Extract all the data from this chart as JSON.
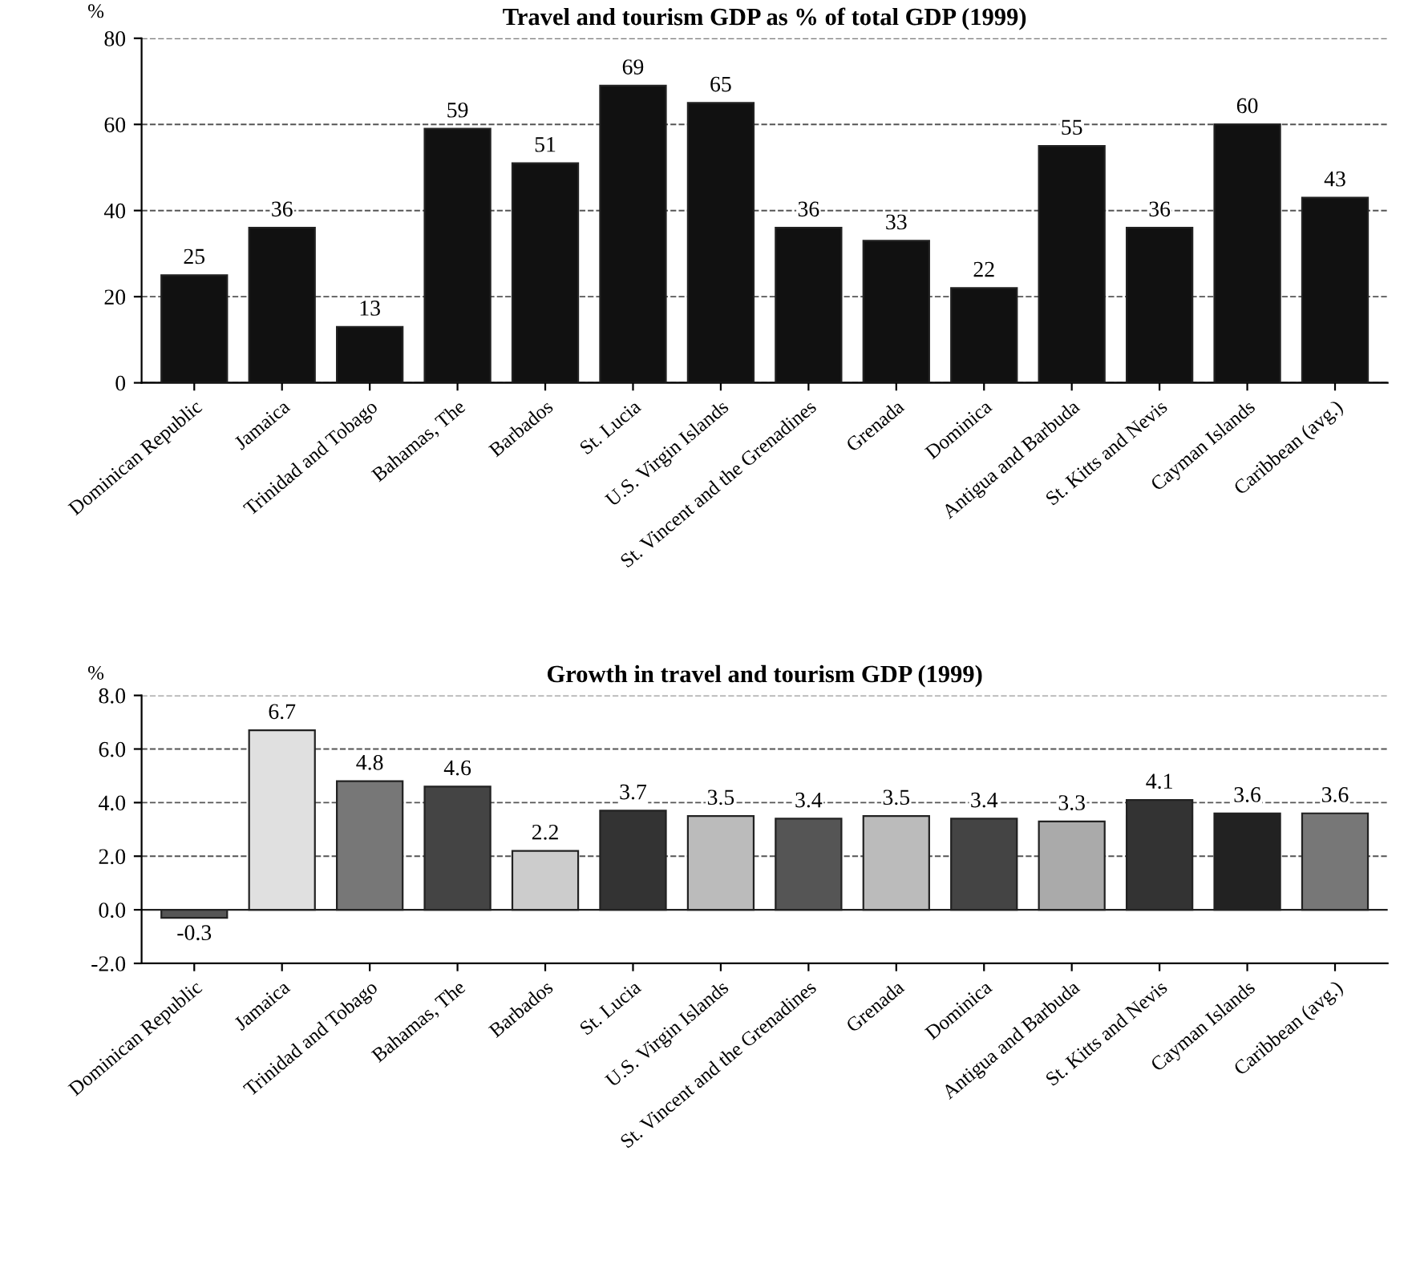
{
  "chart_data": [
    {
      "type": "bar",
      "title": "Travel and tourism GDP as % of total GDP (1999)",
      "ylabel": "%",
      "categories": [
        "Dominican Republic",
        "Jamaica",
        "Trinidad and Tobago",
        "Bahamas, The",
        "Barbados",
        "St. Lucia",
        "U.S. Virgin Islands",
        "St. Vincent and the Grenadines",
        "Grenada",
        "Dominica",
        "Antigua and Barbuda",
        "St. Kitts and Nevis",
        "Cayman Islands",
        "Caribbean (avg.)"
      ],
      "values": [
        25,
        36,
        13,
        59,
        51,
        69,
        65,
        36,
        33,
        22,
        55,
        36,
        60,
        43
      ],
      "color": "#111111",
      "ylim": [
        0,
        80
      ],
      "yticks": [
        0,
        20,
        40,
        60,
        80
      ],
      "grid": "y",
      "data_labels": true
    },
    {
      "type": "bar",
      "title": "Growth in travel and tourism GDP (1999)",
      "ylabel": "%",
      "categories": [
        "Dominican Republic",
        "Jamaica",
        "Trinidad and Tobago",
        "Bahamas, The",
        "Barbados",
        "St. Lucia",
        "U.S. Virgin Islands",
        "St. Vincent and the Grenadines",
        "Grenada",
        "Dominica",
        "Antigua and Barbuda",
        "St. Kitts and Nevis",
        "Cayman Islands",
        "Caribbean (avg.)"
      ],
      "values": [
        -0.3,
        6.7,
        4.8,
        4.6,
        2.2,
        3.7,
        3.5,
        3.4,
        3.5,
        3.4,
        3.3,
        4.1,
        3.6,
        3.6
      ],
      "colors": [
        "#555555",
        "#e0e0e0",
        "#777777",
        "#444444",
        "#cccccc",
        "#333333",
        "#bbbbbb",
        "#555555",
        "#bbbbbb",
        "#444444",
        "#aaaaaa",
        "#333333",
        "#222222",
        "#777777"
      ],
      "ylim": [
        -2,
        8
      ],
      "yticks": [
        {
          "value": -2,
          "label": "-2.0"
        },
        {
          "value": 0,
          "label": "0.0"
        },
        {
          "value": 2,
          "label": "2.0"
        },
        {
          "value": 4,
          "label": "4.0"
        },
        {
          "value": 6,
          "label": "6.0"
        },
        {
          "value": 8,
          "label": "8.0"
        }
      ],
      "grid": "y",
      "data_labels": true
    }
  ]
}
